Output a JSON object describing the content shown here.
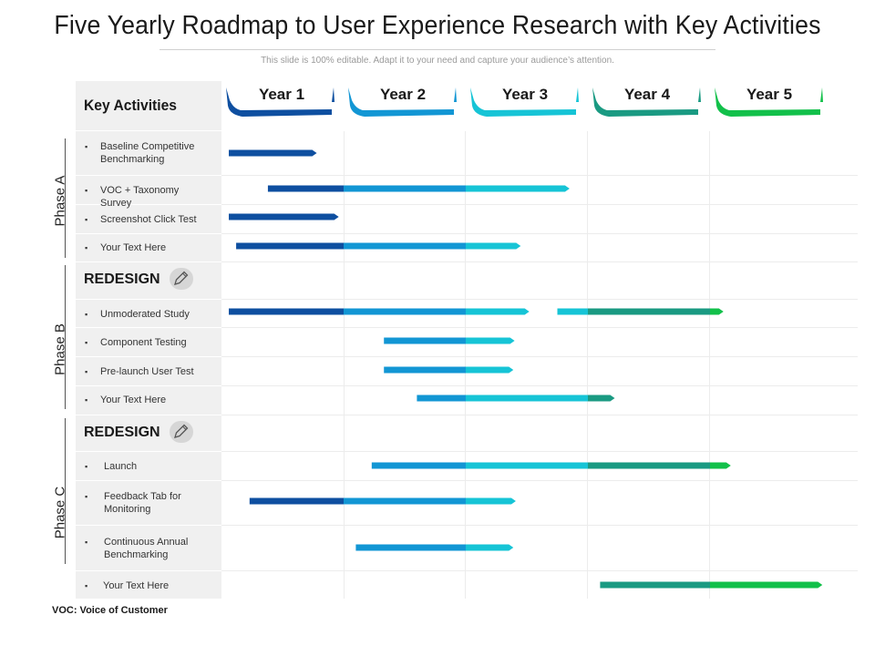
{
  "title": "Five Yearly Roadmap to User Experience Research with Key Activities",
  "subtitle": "This slide is 100% editable. Adapt it to your need and capture your audience’s attention.",
  "key_activities_label": "Key Activities",
  "years": [
    {
      "label": "Year 1",
      "color": "#0e4fa0"
    },
    {
      "label": "Year 2",
      "color": "#1296d4"
    },
    {
      "label": "Year 3",
      "color": "#16c4d6"
    },
    {
      "label": "Year 4",
      "color": "#1a9a82"
    },
    {
      "label": "Year 5",
      "color": "#12c04a"
    }
  ],
  "phases": [
    "Phase A",
    "Phase B",
    "Phase C"
  ],
  "redesign_label": "REDESIGN",
  "activities": [
    {
      "label": "Baseline Competitive Benchmarking",
      "start": 1.06,
      "end": 1.78
    },
    {
      "label": "VOC + Taxonomy Survey",
      "start": 1.38,
      "end": 3.85
    },
    {
      "label": "Screenshot Click Test",
      "start": 1.06,
      "end": 1.96
    },
    {
      "label": "Your Text Here",
      "start": 1.12,
      "end": 3.45
    },
    {
      "label": "Unmoderated Study",
      "start": 1.06,
      "end": 3.52,
      "start2": 3.75,
      "end2": 5.11
    },
    {
      "label": "Component Testing",
      "start": 2.33,
      "end": 3.4
    },
    {
      "label": "Pre-launch User Test",
      "start": 2.33,
      "end": 3.39
    },
    {
      "label": "Your Text Here",
      "start": 2.6,
      "end": 4.22
    },
    {
      "label": "Launch",
      "start": 2.23,
      "end": 5.17
    },
    {
      "label": "Feedback Tab for Monitoring",
      "start": 1.23,
      "end": 3.41
    },
    {
      "label": "Continuous Annual Benchmarking",
      "start": 2.1,
      "end": 3.39
    },
    {
      "label": "Your Text Here",
      "start": 4.1,
      "end": 5.92
    }
  ],
  "footer": "VOC:  Voice of Customer"
}
